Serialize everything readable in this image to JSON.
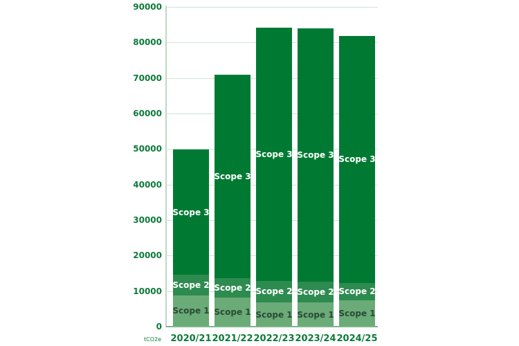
{
  "chart_data": {
    "type": "bar",
    "stacked": true,
    "title": "",
    "xlabel": "",
    "ylabel": "tCO2e",
    "unit_label": "tCO2e",
    "ylim": [
      0,
      90000
    ],
    "yticks": [
      0,
      10000,
      20000,
      30000,
      40000,
      50000,
      60000,
      70000,
      80000,
      90000
    ],
    "grid": true,
    "legend": "none (segments labelled inside bars)",
    "categories": [
      "2020/21",
      "2021/22",
      "2022/23",
      "2023/24",
      "2024/25"
    ],
    "series": [
      {
        "name": "Scope 1",
        "color": "#6aab77",
        "values": [
          8800,
          8200,
          6800,
          6800,
          7400
        ]
      },
      {
        "name": "Scope 2",
        "color": "#2e8b50",
        "values": [
          5800,
          5400,
          6100,
          5900,
          4900
        ]
      },
      {
        "name": "Scope 3",
        "color": "#007a33",
        "values": [
          35200,
          57400,
          71300,
          71200,
          69600
        ]
      }
    ],
    "totals": [
      49800,
      71000,
      84200,
      83900,
      81900
    ]
  },
  "labels": {
    "scope1": "Scope 1",
    "scope2": "Scope 2",
    "scope3": "Scope 3",
    "unit": "tCO2e"
  }
}
